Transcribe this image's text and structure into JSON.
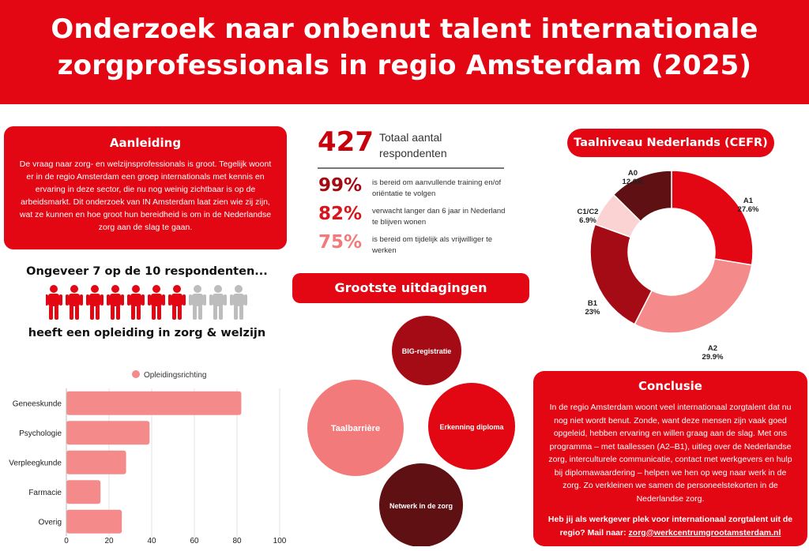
{
  "header": {
    "title_line1": "Onderzoek naar onbenut talent internationale",
    "title_line2": "zorgprofessionals in regio Amsterdam (2025)"
  },
  "aanleiding": {
    "title": "Aanleiding",
    "body": "De vraag naar zorg- en welzijnsprofessionals is groot. Tegelijk woont er in de regio Amsterdam een groep internationals met kennis en ervaring in deze sector, die nu nog weinig zichtbaar is op de arbeidsmarkt. Dit onderzoek van IN Amsterdam laat zien wie zij zijn, wat ze kunnen en hoe groot hun bereidheid is om in de Nederlandse zorg aan de slag te gaan."
  },
  "stats": {
    "total_value": "427",
    "total_label": "Totaal aantal respondenten",
    "items": [
      {
        "pct": "99%",
        "text": "is bereid om aanvullende training en/of oriëntatie te volgen",
        "color": "#a30a12"
      },
      {
        "pct": "82%",
        "text": "verwacht langer dan 6 jaar in Nederland te blijven wonen",
        "color": "#d9141c"
      },
      {
        "pct": "75%",
        "text": "is bereid om tijdelijk als vrijwilliger te werken",
        "color": "#f27a7a"
      }
    ]
  },
  "people": {
    "title": "Ongeveer 7 op de 10 respondenten...",
    "subtitle": "heeft een opleiding in zorg & welzijn",
    "highlighted": 7,
    "total": 10,
    "color_on": "#e30613",
    "color_off": "#bdbdbd"
  },
  "challenges": {
    "title": "Grootste uitdagingen",
    "bubbles": [
      {
        "label": "Taalbarrière",
        "color": "#f37a7a"
      },
      {
        "label": "BIG-registratie",
        "color": "#a50b14"
      },
      {
        "label": "Erkenning diploma",
        "color": "#e30613"
      },
      {
        "label": "Netwerk in de zorg",
        "color": "#5e1012"
      }
    ]
  },
  "conclusie": {
    "title": "Conclusie",
    "body": "In de regio Amsterdam woont veel internationaal zorgtalent dat nu nog niet wordt benut. Zonde, want deze mensen zijn vaak goed opgeleid, hebben ervaring en willen graag aan de slag. Met ons programma – met taallessen (A2–B1), uitleg over de Nederlandse zorg, interculturele communicatie, contact met werkgevers en hulp bij diplomawaardering – helpen we hen op weg naar werk in de zorg. Zo verkleinen we samen de personeelstekorten in de Nederlandse zorg.",
    "cta": "Heb jij als werkgever plek voor internationaal zorgtalent uit de regio? Mail naar:",
    "email": "zorg@werkcentrumgrootamsterdam.nl"
  },
  "colors": {
    "brand_red": "#e30613",
    "dark_red": "#a50b14",
    "light_red": "#f37a7a",
    "bar_fill": "#f58a8a"
  },
  "chart_data": [
    {
      "type": "bar",
      "orientation": "horizontal",
      "title": "",
      "categories": [
        "Geneeskunde",
        "Psychologie",
        "Verpleegkunde",
        "Farmacie",
        "Overig"
      ],
      "series": [
        {
          "name": "Opleidingsrichting",
          "values": [
            82,
            39,
            28,
            16,
            26
          ],
          "color": "#f58a8a"
        }
      ],
      "xlim": [
        0,
        100
      ],
      "xticks": [
        0,
        20,
        40,
        60,
        80,
        100
      ],
      "grid": true,
      "legend": "top"
    },
    {
      "type": "pie",
      "variant": "donut",
      "title": "Taalniveau Nederlands (CEFR)",
      "slices": [
        {
          "label": "A1",
          "value": 27.6,
          "value_label": "27.6%",
          "color": "#e30613"
        },
        {
          "label": "A2",
          "value": 29.9,
          "value_label": "29.9%",
          "color": "#f58a8a"
        },
        {
          "label": "B1",
          "value": 23,
          "value_label": "23%",
          "color": "#a50b14"
        },
        {
          "label": "C1/C2",
          "value": 6.9,
          "value_label": "6.9%",
          "color": "#fbd3d3"
        },
        {
          "label": "A0",
          "value": 12.6,
          "value_label": "12.6%",
          "color": "#5e1012"
        }
      ]
    }
  ]
}
